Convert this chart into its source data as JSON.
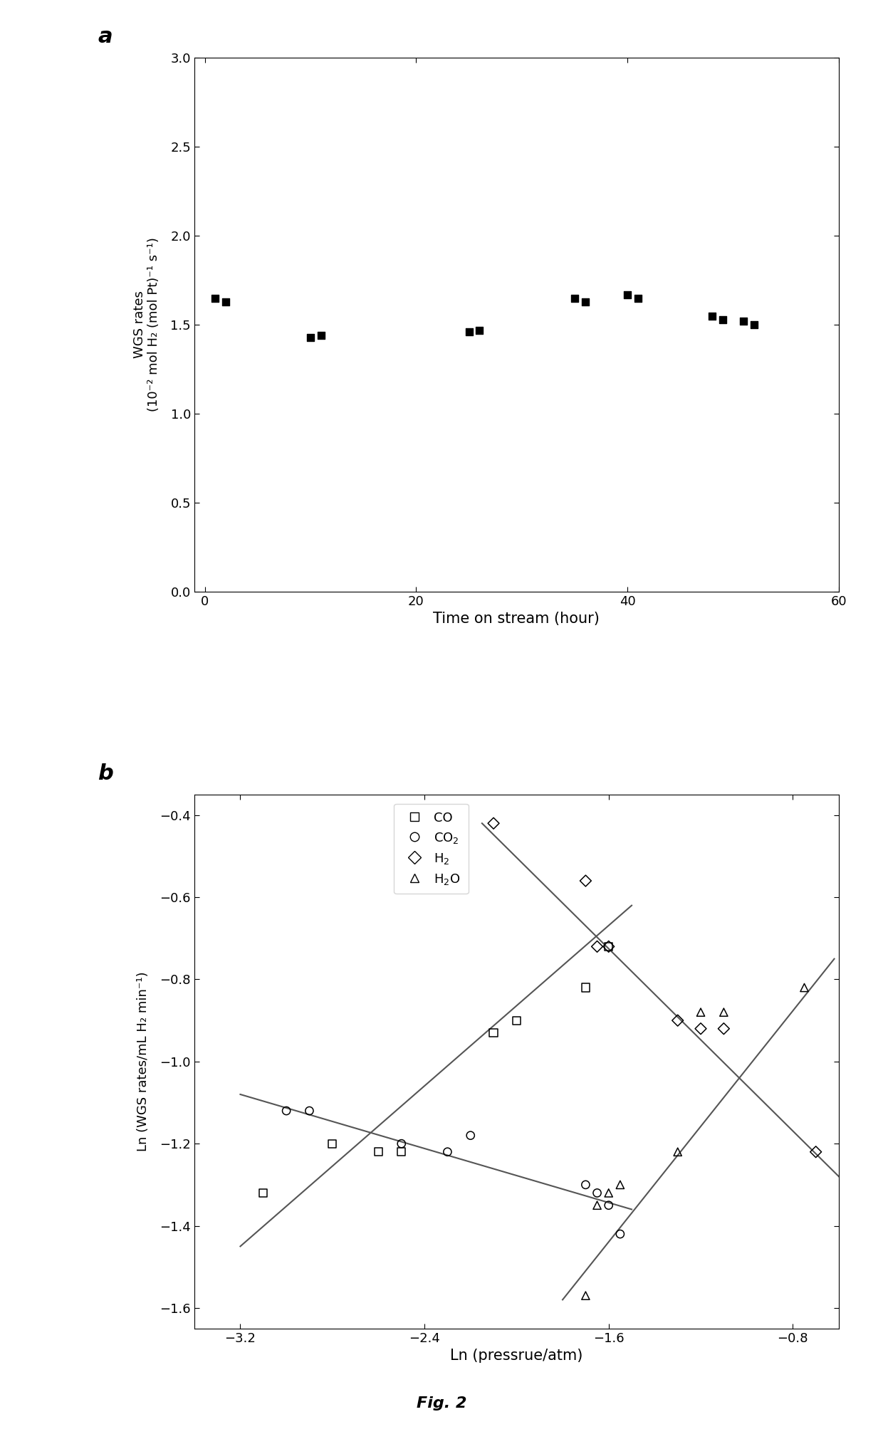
{
  "panel_a": {
    "title_label": "a",
    "xlabel": "Time on stream (hour)",
    "ylabel_line1": "WGS rates",
    "ylabel_line2": "(10⁻² mol H₂ (mol Pt)⁻¹ s⁻¹)",
    "xlim": [
      -1,
      60
    ],
    "ylim": [
      0.0,
      3.0
    ],
    "xticks": [
      0,
      20,
      40,
      60
    ],
    "yticks": [
      0.0,
      0.5,
      1.0,
      1.5,
      2.0,
      2.5,
      3.0
    ],
    "data_x": [
      1,
      2,
      10,
      11,
      25,
      26,
      35,
      36,
      40,
      41,
      48,
      49,
      51,
      52
    ],
    "data_y": [
      1.65,
      1.63,
      1.43,
      1.44,
      1.46,
      1.47,
      1.65,
      1.63,
      1.67,
      1.65,
      1.55,
      1.53,
      1.52,
      1.5
    ],
    "marker": "s",
    "marker_color": "black",
    "marker_size": 7
  },
  "panel_b": {
    "title_label": "b",
    "xlabel": "Ln (pressrue/atm)",
    "ylabel": "Ln (WGS rates/mL H₂ min⁻¹)",
    "xlim": [
      -3.4,
      -0.6
    ],
    "ylim": [
      -1.65,
      -0.35
    ],
    "xticks": [
      -3.2,
      -2.4,
      -1.6,
      -0.8
    ],
    "yticks": [
      -1.6,
      -1.4,
      -1.2,
      -1.0,
      -0.8,
      -0.6,
      -0.4
    ],
    "CO": {
      "x": [
        -3.1,
        -2.8,
        -2.6,
        -2.5,
        -2.1,
        -2.0,
        -1.7,
        -1.6
      ],
      "y": [
        -1.32,
        -1.2,
        -1.22,
        -1.22,
        -0.93,
        -0.9,
        -0.82,
        -0.72
      ],
      "fit_x": [
        -3.2,
        -1.5
      ],
      "fit_y": [
        -1.45,
        -0.62
      ],
      "marker": "s",
      "label": "CO"
    },
    "CO2": {
      "x": [
        -3.0,
        -2.9,
        -2.5,
        -2.3,
        -2.2,
        -1.7,
        -1.65,
        -1.6,
        -1.55
      ],
      "y": [
        -1.12,
        -1.12,
        -1.2,
        -1.22,
        -1.18,
        -1.3,
        -1.32,
        -1.35,
        -1.42
      ],
      "fit_x": [
        -3.2,
        -1.5
      ],
      "fit_y": [
        -1.08,
        -1.36
      ],
      "marker": "o",
      "label": "CO₂"
    },
    "H2": {
      "x": [
        -2.1,
        -1.7,
        -1.65,
        -1.6,
        -1.3,
        -1.2,
        -1.1,
        -0.7
      ],
      "y": [
        -0.42,
        -0.56,
        -0.72,
        -0.72,
        -0.9,
        -0.92,
        -0.92,
        -1.22
      ],
      "fit_x": [
        -2.15,
        -0.6
      ],
      "fit_y": [
        -0.42,
        -1.28
      ],
      "marker": "D",
      "label": "H₂"
    },
    "H2O": {
      "x": [
        -1.7,
        -1.65,
        -1.6,
        -1.55,
        -1.3,
        -1.2,
        -1.1,
        -0.75
      ],
      "y": [
        -1.57,
        -1.35,
        -1.32,
        -1.3,
        -1.22,
        -0.88,
        -0.88,
        -0.82
      ],
      "fit_x": [
        -1.8,
        -0.62
      ],
      "fit_y": [
        -1.58,
        -0.75
      ],
      "marker": "^",
      "label": "H₂O"
    },
    "line_color": "#555555"
  },
  "fig_label": "Fig. 2",
  "background_color": "#ffffff"
}
